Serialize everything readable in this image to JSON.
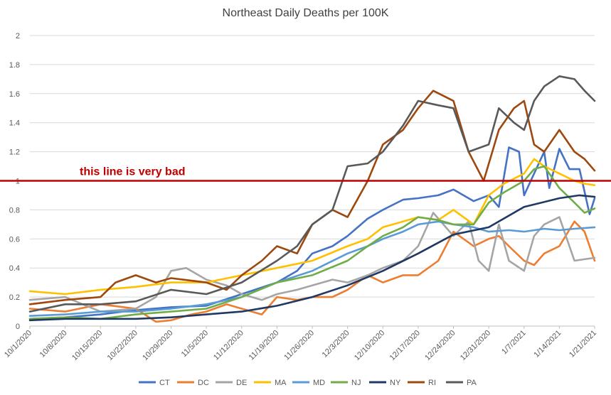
{
  "chart_data": {
    "type": "line",
    "title": "Northeast Daily Deaths per 100K",
    "x_tick_labels": [
      "10/1/2020",
      "10/8/2020",
      "10/15/2020",
      "10/22/2020",
      "10/29/2020",
      "11/5/2020",
      "11/12/2020",
      "11/19/2020",
      "11/26/2020",
      "12/3/2020",
      "12/10/2020",
      "12/17/2020",
      "12/24/2020",
      "12/31/2020",
      "1/7/2021",
      "1/14/2021",
      "1/21/2021"
    ],
    "y_tick_labels": [
      "0",
      "0.2",
      "0.4",
      "0.6",
      "0.8",
      "1",
      "1.2",
      "1.4",
      "1.6",
      "1.8",
      "2"
    ],
    "ylim": [
      0,
      2
    ],
    "grid": true,
    "legend_position": "bottom",
    "annotation": {
      "text": "this line is very bad",
      "y": 1.0,
      "color": "#C00000"
    },
    "series": [
      {
        "name": "CT",
        "color": "#4472C4",
        "x": [
          "10/1/2020",
          "10/8/2020",
          "10/15/2020",
          "10/22/2020",
          "10/29/2020",
          "11/5/2020",
          "11/12/2020",
          "11/19/2020",
          "11/23/2020",
          "11/26/2020",
          "11/30/2020",
          "12/3/2020",
          "12/7/2020",
          "12/10/2020",
          "12/14/2020",
          "12/17/2020",
          "12/21/2020",
          "12/24/2020",
          "12/28/2020",
          "12/31/2020",
          "1/2/2021",
          "1/4/2021",
          "1/6/2021",
          "1/7/2021",
          "1/9/2021",
          "1/11/2021",
          "1/12/2021",
          "1/14/2021",
          "1/16/2021",
          "1/18/2021",
          "1/20/2021",
          "1/21/2021"
        ],
        "y": [
          0.05,
          0.06,
          0.08,
          0.11,
          0.13,
          0.14,
          0.22,
          0.3,
          0.38,
          0.5,
          0.55,
          0.62,
          0.74,
          0.8,
          0.87,
          0.88,
          0.9,
          0.94,
          0.86,
          0.9,
          0.82,
          1.23,
          1.2,
          0.9,
          1.05,
          1.2,
          0.95,
          1.22,
          1.08,
          1.08,
          0.77,
          0.88
        ]
      },
      {
        "name": "DC",
        "color": "#ED7D31",
        "x": [
          "10/1/2020",
          "10/8/2020",
          "10/15/2020",
          "10/22/2020",
          "10/26/2020",
          "10/29/2020",
          "11/2/2020",
          "11/5/2020",
          "11/9/2020",
          "11/12/2020",
          "11/16/2020",
          "11/19/2020",
          "11/23/2020",
          "11/26/2020",
          "11/30/2020",
          "12/3/2020",
          "12/7/2020",
          "12/10/2020",
          "12/14/2020",
          "12/17/2020",
          "12/21/2020",
          "12/24/2020",
          "12/28/2020",
          "12/31/2020",
          "1/2/2021",
          "1/4/2021",
          "1/7/2021",
          "1/9/2021",
          "1/11/2021",
          "1/14/2021",
          "1/17/2021",
          "1/19/2021",
          "1/21/2021"
        ],
        "y": [
          0.12,
          0.1,
          0.15,
          0.12,
          0.03,
          0.04,
          0.08,
          0.1,
          0.15,
          0.12,
          0.08,
          0.2,
          0.18,
          0.2,
          0.2,
          0.25,
          0.35,
          0.3,
          0.35,
          0.35,
          0.45,
          0.65,
          0.55,
          0.6,
          0.62,
          0.55,
          0.45,
          0.42,
          0.5,
          0.55,
          0.72,
          0.65,
          0.45
        ]
      },
      {
        "name": "DE",
        "color": "#A5A5A5",
        "x": [
          "10/1/2020",
          "10/8/2020",
          "10/15/2020",
          "10/22/2020",
          "10/26/2020",
          "10/29/2020",
          "11/1/2020",
          "11/5/2020",
          "11/9/2020",
          "11/12/2020",
          "11/16/2020",
          "11/19/2020",
          "11/23/2020",
          "11/26/2020",
          "11/30/2020",
          "12/3/2020",
          "12/7/2020",
          "12/10/2020",
          "12/14/2020",
          "12/17/2020",
          "12/20/2020",
          "12/24/2020",
          "12/27/2020",
          "12/29/2020",
          "12/31/2020",
          "1/2/2021",
          "1/4/2021",
          "1/7/2021",
          "1/9/2021",
          "1/11/2021",
          "1/14/2021",
          "1/17/2021",
          "1/19/2021",
          "1/21/2021"
        ],
        "y": [
          0.18,
          0.2,
          0.1,
          0.12,
          0.2,
          0.38,
          0.4,
          0.32,
          0.28,
          0.22,
          0.18,
          0.22,
          0.25,
          0.28,
          0.32,
          0.3,
          0.35,
          0.4,
          0.45,
          0.55,
          0.78,
          0.62,
          0.72,
          0.45,
          0.38,
          0.7,
          0.45,
          0.38,
          0.62,
          0.7,
          0.75,
          0.45,
          0.46,
          0.47
        ]
      },
      {
        "name": "MA",
        "color": "#FFC000",
        "x": [
          "10/1/2020",
          "10/8/2020",
          "10/15/2020",
          "10/22/2020",
          "10/29/2020",
          "11/5/2020",
          "11/12/2020",
          "11/19/2020",
          "11/26/2020",
          "12/3/2020",
          "12/7/2020",
          "12/10/2020",
          "12/14/2020",
          "12/17/2020",
          "12/21/2020",
          "12/24/2020",
          "12/28/2020",
          "12/31/2020",
          "1/3/2021",
          "1/7/2021",
          "1/9/2021",
          "1/11/2021",
          "1/14/2021",
          "1/17/2021",
          "1/19/2021",
          "1/21/2021"
        ],
        "y": [
          0.24,
          0.22,
          0.25,
          0.27,
          0.3,
          0.3,
          0.35,
          0.4,
          0.45,
          0.55,
          0.6,
          0.68,
          0.72,
          0.75,
          0.73,
          0.8,
          0.7,
          0.9,
          0.98,
          1.05,
          1.15,
          1.1,
          1.05,
          1.0,
          0.98,
          0.97
        ]
      },
      {
        "name": "MD",
        "color": "#5B9BD5",
        "x": [
          "10/1/2020",
          "10/8/2020",
          "10/15/2020",
          "10/22/2020",
          "10/29/2020",
          "11/5/2020",
          "11/12/2020",
          "11/19/2020",
          "11/26/2020",
          "12/3/2020",
          "12/7/2020",
          "12/10/2020",
          "12/14/2020",
          "12/17/2020",
          "12/21/2020",
          "12/24/2020",
          "12/28/2020",
          "12/31/2020",
          "1/4/2021",
          "1/7/2021",
          "1/11/2021",
          "1/14/2021",
          "1/17/2021",
          "1/21/2021"
        ],
        "y": [
          0.07,
          0.08,
          0.1,
          0.1,
          0.12,
          0.15,
          0.2,
          0.3,
          0.38,
          0.5,
          0.55,
          0.6,
          0.65,
          0.7,
          0.72,
          0.7,
          0.68,
          0.65,
          0.66,
          0.65,
          0.67,
          0.66,
          0.67,
          0.68
        ]
      },
      {
        "name": "NJ",
        "color": "#70AD47",
        "x": [
          "10/1/2020",
          "10/8/2020",
          "10/15/2020",
          "10/22/2020",
          "10/29/2020",
          "11/5/2020",
          "11/12/2020",
          "11/19/2020",
          "11/26/2020",
          "12/3/2020",
          "12/7/2020",
          "12/10/2020",
          "12/14/2020",
          "12/17/2020",
          "12/21/2020",
          "12/24/2020",
          "12/28/2020",
          "12/31/2020",
          "1/3/2021",
          "1/7/2021",
          "1/9/2021",
          "1/11/2021",
          "1/14/2021",
          "1/17/2021",
          "1/19/2021",
          "1/21/2021"
        ],
        "y": [
          0.05,
          0.06,
          0.05,
          0.08,
          0.1,
          0.12,
          0.2,
          0.3,
          0.35,
          0.45,
          0.55,
          0.62,
          0.68,
          0.75,
          0.73,
          0.7,
          0.7,
          0.85,
          0.92,
          1.0,
          1.08,
          1.1,
          0.95,
          0.85,
          0.78,
          0.81
        ]
      },
      {
        "name": "NY",
        "color": "#203864",
        "x": [
          "10/1/2020",
          "10/8/2020",
          "10/15/2020",
          "10/22/2020",
          "10/29/2020",
          "11/5/2020",
          "11/12/2020",
          "11/19/2020",
          "11/26/2020",
          "12/3/2020",
          "12/10/2020",
          "12/17/2020",
          "12/24/2020",
          "12/31/2020",
          "1/7/2021",
          "1/14/2021",
          "1/18/2021",
          "1/21/2021"
        ],
        "y": [
          0.04,
          0.05,
          0.05,
          0.05,
          0.06,
          0.08,
          0.1,
          0.14,
          0.2,
          0.28,
          0.38,
          0.5,
          0.63,
          0.68,
          0.82,
          0.88,
          0.9,
          0.89
        ]
      },
      {
        "name": "RI",
        "color": "#9E480E",
        "x": [
          "10/1/2020",
          "10/8/2020",
          "10/15/2020",
          "10/18/2020",
          "10/22/2020",
          "10/26/2020",
          "10/29/2020",
          "11/5/2020",
          "11/9/2020",
          "11/12/2020",
          "11/16/2020",
          "11/19/2020",
          "11/23/2020",
          "11/26/2020",
          "11/30/2020",
          "12/3/2020",
          "12/7/2020",
          "12/10/2020",
          "12/14/2020",
          "12/17/2020",
          "12/20/2020",
          "12/24/2020",
          "12/27/2020",
          "12/30/2020",
          "1/2/2021",
          "1/5/2021",
          "1/7/2021",
          "1/9/2021",
          "1/11/2021",
          "1/14/2021",
          "1/17/2021",
          "1/19/2021",
          "1/21/2021"
        ],
        "y": [
          0.15,
          0.18,
          0.2,
          0.3,
          0.35,
          0.3,
          0.33,
          0.3,
          0.25,
          0.35,
          0.45,
          0.55,
          0.5,
          0.7,
          0.8,
          0.75,
          1.0,
          1.25,
          1.35,
          1.5,
          1.62,
          1.55,
          1.2,
          1.0,
          1.35,
          1.5,
          1.55,
          1.25,
          1.2,
          1.35,
          1.2,
          1.15,
          1.07
        ]
      },
      {
        "name": "PA",
        "color": "#595959",
        "x": [
          "10/1/2020",
          "10/8/2020",
          "10/15/2020",
          "10/22/2020",
          "10/29/2020",
          "11/5/2020",
          "11/12/2020",
          "11/19/2020",
          "11/23/2020",
          "11/26/2020",
          "11/30/2020",
          "12/3/2020",
          "12/7/2020",
          "12/10/2020",
          "12/14/2020",
          "12/17/2020",
          "12/21/2020",
          "12/24/2020",
          "12/27/2020",
          "12/31/2020",
          "1/2/2021",
          "1/5/2021",
          "1/7/2021",
          "1/9/2021",
          "1/11/2021",
          "1/14/2021",
          "1/17/2021",
          "1/19/2021",
          "1/21/2021"
        ],
        "y": [
          0.1,
          0.15,
          0.15,
          0.17,
          0.25,
          0.22,
          0.3,
          0.45,
          0.55,
          0.7,
          0.8,
          1.1,
          1.12,
          1.2,
          1.38,
          1.55,
          1.52,
          1.5,
          1.2,
          1.25,
          1.5,
          1.4,
          1.35,
          1.55,
          1.65,
          1.72,
          1.7,
          1.62,
          1.55
        ]
      }
    ]
  }
}
